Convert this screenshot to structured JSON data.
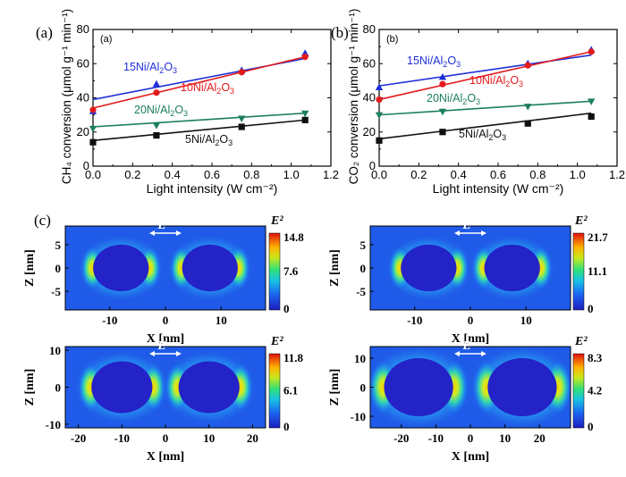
{
  "figure": {
    "panel_labels": {
      "a": "(a)",
      "b": "(b)",
      "c": "(c)"
    }
  },
  "chart_data": [
    {
      "type": "scatter",
      "id": "a",
      "inner_label": "(a)",
      "xlabel": "Light intensity (W cm⁻²)",
      "ylabel": "CH₄ conversion (μmol g⁻¹ min⁻¹)",
      "xlim": [
        0.0,
        1.2
      ],
      "ylim": [
        0,
        80
      ],
      "xticks": [
        "0.0",
        "0.2",
        "0.4",
        "0.6",
        "0.8",
        "1.0",
        "1.2"
      ],
      "yticks": [
        "0",
        "20",
        "40",
        "60",
        "80"
      ],
      "series": [
        {
          "name": "15Ni/Al₂O₃",
          "color": "#1f2fd6",
          "marker": "triangle-up",
          "x": [
            0.0,
            0.32,
            0.75,
            1.07
          ],
          "y": [
            32,
            48,
            56,
            66
          ],
          "fit": [
            39,
            63
          ]
        },
        {
          "name": "10Ni/Al₂O₃",
          "color": "#e31a1c",
          "marker": "circle",
          "x": [
            0.0,
            0.32,
            0.75,
            1.07
          ],
          "y": [
            33,
            43,
            55,
            64
          ],
          "fit": [
            34,
            64
          ]
        },
        {
          "name": "20Ni/Al₂O₃",
          "color": "#1b7f5a",
          "marker": "triangle-down",
          "x": [
            0.0,
            0.32,
            0.75,
            1.07
          ],
          "y": [
            22,
            24,
            28,
            31
          ],
          "fit": [
            23,
            31
          ]
        },
        {
          "name": "5Ni/Al₂O₃",
          "color": "#111111",
          "marker": "square",
          "x": [
            0.0,
            0.32,
            0.75,
            1.07
          ],
          "y": [
            14,
            18,
            23,
            27
          ],
          "fit": [
            15,
            27
          ]
        }
      ]
    },
    {
      "type": "scatter",
      "id": "b",
      "inner_label": "(b)",
      "xlabel": "Light intensity (W cm⁻²)",
      "ylabel": "CO₂ conversion (μmol g⁻¹ min⁻¹)",
      "xlim": [
        0.0,
        1.2
      ],
      "ylim": [
        0,
        80
      ],
      "xticks": [
        "0.0",
        "0.2",
        "0.4",
        "0.6",
        "0.8",
        "1.0",
        "1.2"
      ],
      "yticks": [
        "0",
        "20",
        "40",
        "60",
        "80"
      ],
      "series": [
        {
          "name": "15Ni/Al₂O₃",
          "color": "#1f2fd6",
          "marker": "triangle-up",
          "x": [
            0.0,
            0.32,
            0.75,
            1.07
          ],
          "y": [
            46,
            52,
            60,
            68
          ],
          "fit": [
            47,
            65
          ]
        },
        {
          "name": "10Ni/Al₂O₃",
          "color": "#e31a1c",
          "marker": "circle",
          "x": [
            0.0,
            0.32,
            0.75,
            1.07
          ],
          "y": [
            39,
            48,
            59,
            67
          ],
          "fit": [
            39,
            67
          ]
        },
        {
          "name": "20Ni/Al₂O₃",
          "color": "#1b7f5a",
          "marker": "triangle-down",
          "x": [
            0.0,
            0.32,
            0.75,
            1.07
          ],
          "y": [
            30,
            32,
            35,
            38
          ],
          "fit": [
            30,
            38
          ]
        },
        {
          "name": "5Ni/Al₂O₃",
          "color": "#111111",
          "marker": "square",
          "x": [
            0.0,
            0.32,
            0.75,
            1.07
          ],
          "y": [
            15,
            20,
            25,
            29
          ],
          "fit": [
            16,
            31
          ]
        }
      ]
    },
    {
      "type": "heatmap",
      "id": "c1",
      "xlabel": "X [nm]",
      "ylabel": "Z [nm]",
      "xlim": [
        -18,
        18
      ],
      "ylim": [
        -9,
        9
      ],
      "xticks": [
        -10,
        0,
        10
      ],
      "yticks": [
        5,
        0,
        -5
      ],
      "particle_centers_nm": [
        -8,
        8
      ],
      "particle_radius_nm": 5,
      "field_arrow_label": "E",
      "colorbar": {
        "label": "E²",
        "max": "14.8",
        "mid": "7.6",
        "min": "0"
      }
    },
    {
      "type": "heatmap",
      "id": "c2",
      "xlabel": "X [nm]",
      "ylabel": "Z [nm]",
      "xlim": [
        -18,
        18
      ],
      "ylim": [
        -9,
        9
      ],
      "xticks": [
        -10,
        0,
        10
      ],
      "yticks": [
        5,
        0,
        -5
      ],
      "particle_centers_nm": [
        -7.5,
        7.5
      ],
      "particle_radius_nm": 5,
      "field_arrow_label": "E",
      "colorbar": {
        "label": "E²",
        "max": "21.7",
        "mid": "11.1",
        "min": "0"
      }
    },
    {
      "type": "heatmap",
      "id": "c3",
      "xlabel": "X [nm]",
      "ylabel": "Z [nm]",
      "xlim": [
        -23,
        23
      ],
      "ylim": [
        -11,
        11
      ],
      "xticks": [
        -20,
        -10,
        0,
        10,
        20
      ],
      "yticks": [
        10,
        0,
        -10
      ],
      "particle_centers_nm": [
        -10,
        10
      ],
      "particle_radius_nm": 7,
      "field_arrow_label": "E",
      "colorbar": {
        "label": "E²",
        "max": "11.8",
        "mid": "6.1",
        "min": "0"
      }
    },
    {
      "type": "heatmap",
      "id": "c4",
      "xlabel": "X [nm]",
      "ylabel": "Z [nm]",
      "xlim": [
        -29,
        29
      ],
      "ylim": [
        -14,
        14
      ],
      "xticks": [
        -20,
        -10,
        0,
        10,
        20
      ],
      "yticks": [
        10,
        0,
        -10
      ],
      "particle_centers_nm": [
        -15,
        15
      ],
      "particle_radius_nm": 10,
      "field_arrow_label": "E",
      "colorbar": {
        "label": "E²",
        "max": "8.3",
        "mid": "4.2",
        "min": "0"
      }
    }
  ]
}
